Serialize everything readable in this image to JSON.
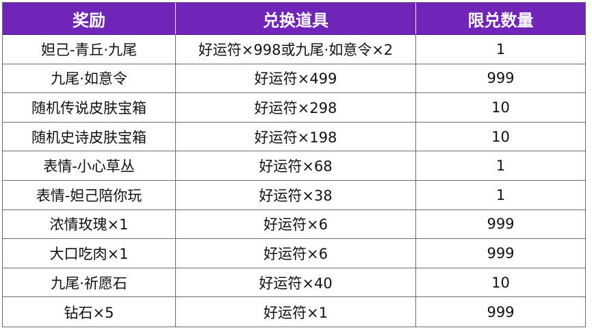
{
  "header": {
    "reward": "奖励",
    "item": "兑换道具",
    "limit": "限兑数量"
  },
  "accent_color": "#7024b8",
  "rows": [
    {
      "reward": "妲己-青丘·九尾",
      "item": "好运符×998或九尾·如意令×2",
      "limit": "1"
    },
    {
      "reward": "九尾·如意令",
      "item": "好运符×499",
      "limit": "999"
    },
    {
      "reward": "随机传说皮肤宝箱",
      "item": "好运符×298",
      "limit": "10"
    },
    {
      "reward": "随机史诗皮肤宝箱",
      "item": "好运符×198",
      "limit": "10"
    },
    {
      "reward": "表情-小心草丛",
      "item": "好运符×68",
      "limit": "1"
    },
    {
      "reward": "表情-妲己陪你玩",
      "item": "好运符×38",
      "limit": "1"
    },
    {
      "reward": "浓情玫瑰×1",
      "item": "好运符×6",
      "limit": "999"
    },
    {
      "reward": "大口吃肉×1",
      "item": "好运符×6",
      "limit": "999"
    },
    {
      "reward": "九尾·祈愿石",
      "item": "好运符×40",
      "limit": "10"
    },
    {
      "reward": "钻石×5",
      "item": "好运符×1",
      "limit": "999"
    }
  ]
}
